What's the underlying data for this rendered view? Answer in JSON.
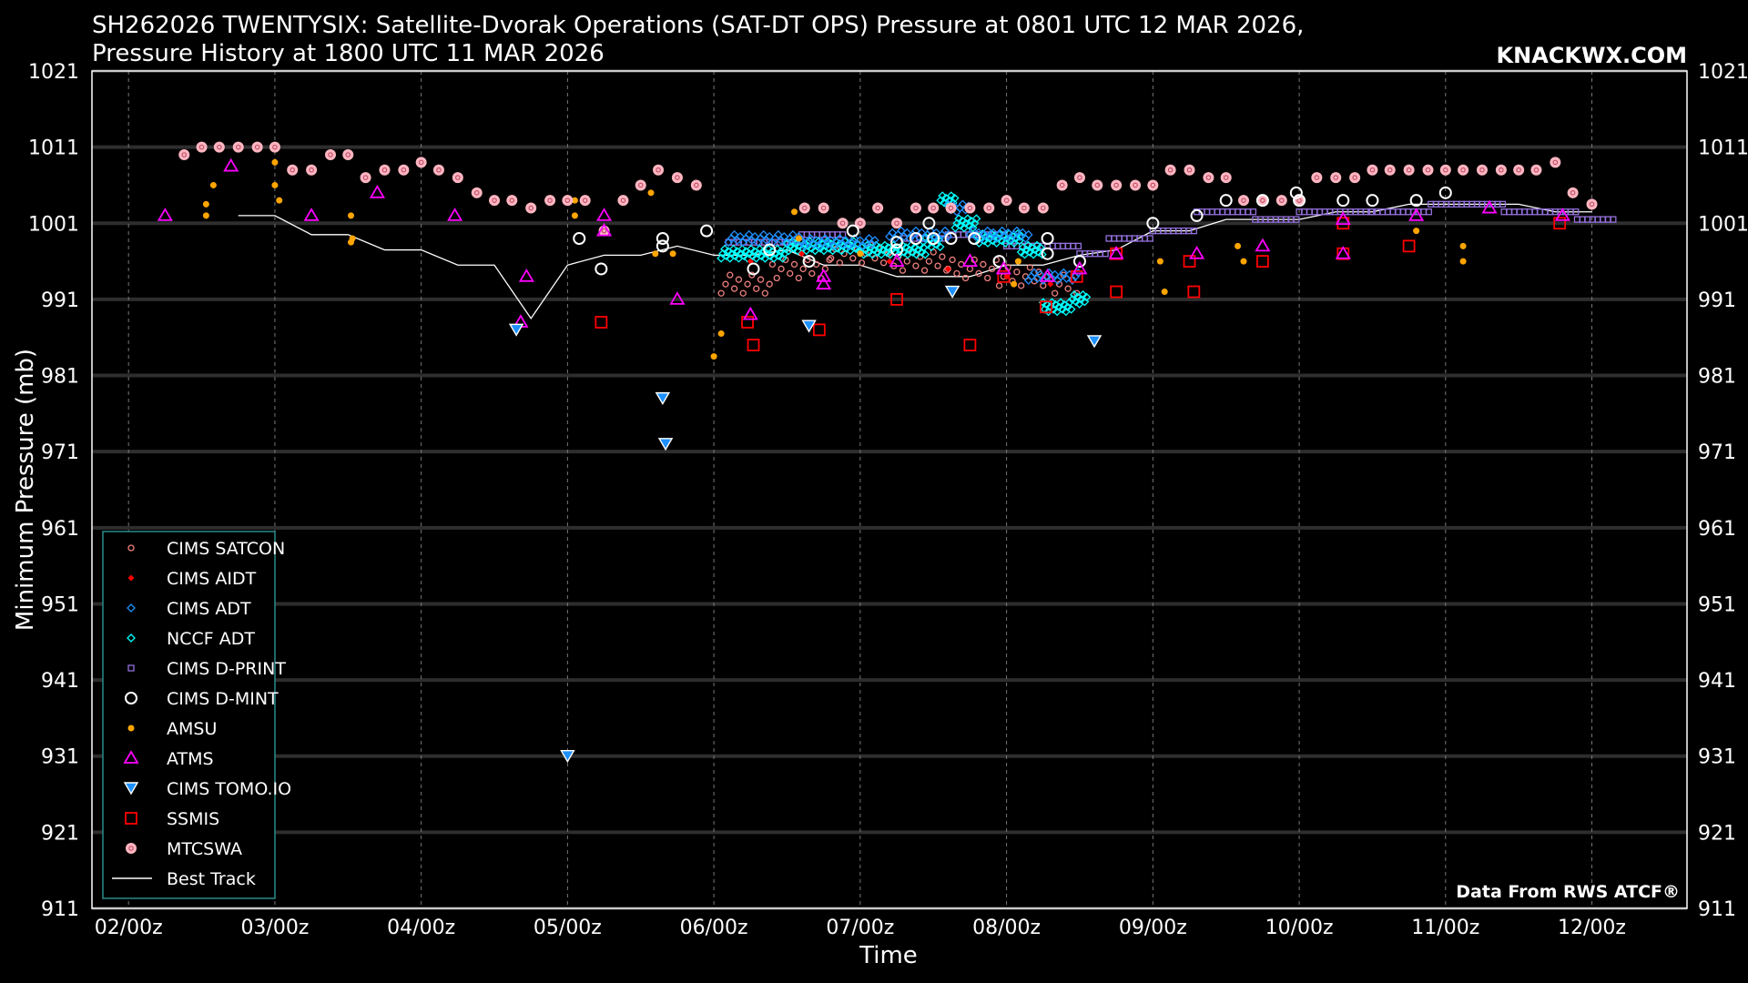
{
  "chart_data": {
    "type": "scatter",
    "title_line1": "SH262026 TWENTYSIX: Satellite-Dvorak Operations (SAT-DT OPS) Pressure at 0801 UTC 12 MAR 2026,",
    "title_line2": "Pressure History at 1800 UTC 11 MAR 2026",
    "brand": "KNACKWX.COM",
    "credit": "Data From RWS ATCF®",
    "xlabel": "Time",
    "ylabel": "Minimum Pressure (mb)",
    "xlim": [
      1.75,
      12.65
    ],
    "ylim": [
      911,
      1021
    ],
    "xticks": [
      2,
      3,
      4,
      5,
      6,
      7,
      8,
      9,
      10,
      11,
      12
    ],
    "xtick_labels": [
      "02/00z",
      "03/00z",
      "04/00z",
      "05/00z",
      "06/00z",
      "07/00z",
      "08/00z",
      "09/00z",
      "10/00z",
      "11/00z",
      "12/00z"
    ],
    "yticks": [
      911,
      921,
      931,
      941,
      951,
      961,
      971,
      981,
      991,
      1001,
      1011,
      1021
    ],
    "ytick_labels": [
      "911",
      "921",
      "931",
      "941",
      "951",
      "961",
      "971",
      "981",
      "991",
      "1001",
      "1011",
      "1021"
    ],
    "x_units": "days of March 2026 (UTC)",
    "colors": {
      "satcon": "#f08080",
      "aidt": "#ff0000",
      "adt": "#1e90ff",
      "nccf": "#00ffff",
      "dprint": "#9370db",
      "dmint": "#ffffff",
      "amsu": "#ffa500",
      "atms": "#ff00ff",
      "tomoio": "#1e90ff",
      "ssmis": "#ff0000",
      "mtcswa": "#ffb6c1",
      "best": "#ffffff"
    },
    "legend": [
      {
        "key": "satcon",
        "label": "CIMS SATCON"
      },
      {
        "key": "aidt",
        "label": "CIMS AIDT"
      },
      {
        "key": "adt",
        "label": "CIMS ADT"
      },
      {
        "key": "nccf",
        "label": "NCCF ADT"
      },
      {
        "key": "dprint",
        "label": "CIMS D-PRINT"
      },
      {
        "key": "dmint",
        "label": "CIMS D-MINT"
      },
      {
        "key": "amsu",
        "label": "AMSU"
      },
      {
        "key": "atms",
        "label": "ATMS"
      },
      {
        "key": "tomoio",
        "label": "CIMS TOMO.IO"
      },
      {
        "key": "ssmis",
        "label": "SSMIS"
      },
      {
        "key": "mtcswa",
        "label": "MTCSWA"
      },
      {
        "key": "best",
        "label": "Best Track"
      }
    ],
    "series": {
      "best": [
        [
          2.75,
          1002
        ],
        [
          3.0,
          1002
        ],
        [
          3.25,
          999.5
        ],
        [
          3.5,
          999.5
        ],
        [
          3.75,
          997.5
        ],
        [
          4.0,
          997.5
        ],
        [
          4.25,
          995.5
        ],
        [
          4.5,
          995.5
        ],
        [
          4.75,
          988.5
        ],
        [
          5.0,
          995.5
        ],
        [
          5.25,
          996.8
        ],
        [
          5.5,
          996.8
        ],
        [
          5.75,
          998
        ],
        [
          6.0,
          996.8
        ],
        [
          6.25,
          996.8
        ],
        [
          6.5,
          997.5
        ],
        [
          6.75,
          995.5
        ],
        [
          7.0,
          995.5
        ],
        [
          7.25,
          994
        ],
        [
          7.5,
          994
        ],
        [
          7.75,
          994
        ],
        [
          8.0,
          995.5
        ],
        [
          8.25,
          995.5
        ],
        [
          8.5,
          996.8
        ],
        [
          8.75,
          997.5
        ],
        [
          9.0,
          1000
        ],
        [
          9.25,
          1000
        ],
        [
          9.5,
          1001.5
        ],
        [
          9.75,
          1001.5
        ],
        [
          10.0,
          1001.5
        ],
        [
          10.25,
          1002.5
        ],
        [
          10.5,
          1002.5
        ],
        [
          10.75,
          1003.5
        ],
        [
          11.0,
          1003.5
        ],
        [
          11.25,
          1003.5
        ],
        [
          11.5,
          1003.5
        ],
        [
          11.75,
          1002.5
        ],
        [
          12.0,
          1002.5
        ]
      ],
      "mtcswa": [
        [
          2.38,
          1010
        ],
        [
          2.5,
          1011
        ],
        [
          2.62,
          1011
        ],
        [
          2.75,
          1011
        ],
        [
          2.88,
          1011
        ],
        [
          3.0,
          1011
        ],
        [
          3.12,
          1008
        ],
        [
          3.25,
          1008
        ],
        [
          3.38,
          1010
        ],
        [
          3.5,
          1010
        ],
        [
          3.62,
          1007
        ],
        [
          3.75,
          1008
        ],
        [
          3.88,
          1008
        ],
        [
          4.0,
          1009
        ],
        [
          4.12,
          1008
        ],
        [
          4.25,
          1007
        ],
        [
          4.38,
          1005
        ],
        [
          4.5,
          1004
        ],
        [
          4.62,
          1004
        ],
        [
          4.75,
          1003
        ],
        [
          4.88,
          1004
        ],
        [
          5.0,
          1004
        ],
        [
          5.12,
          1004
        ],
        [
          5.25,
          1000
        ],
        [
          5.38,
          1004
        ],
        [
          5.5,
          1006
        ],
        [
          5.62,
          1008
        ],
        [
          5.75,
          1007
        ],
        [
          5.88,
          1006
        ],
        [
          6.62,
          1003
        ],
        [
          6.75,
          1003
        ],
        [
          6.88,
          1001
        ],
        [
          7.0,
          1001
        ],
        [
          7.12,
          1003
        ],
        [
          7.25,
          1001
        ],
        [
          7.38,
          1003
        ],
        [
          7.5,
          1003
        ],
        [
          7.62,
          1003
        ],
        [
          7.75,
          1003
        ],
        [
          7.88,
          1003
        ],
        [
          8.0,
          1004
        ],
        [
          8.12,
          1003
        ],
        [
          8.25,
          1003
        ],
        [
          8.38,
          1006
        ],
        [
          8.5,
          1007
        ],
        [
          8.62,
          1006
        ],
        [
          8.75,
          1006
        ],
        [
          8.88,
          1006
        ],
        [
          9.0,
          1006
        ],
        [
          9.12,
          1008
        ],
        [
          9.25,
          1008
        ],
        [
          9.38,
          1007
        ],
        [
          9.5,
          1007
        ],
        [
          9.62,
          1004
        ],
        [
          9.75,
          1004
        ],
        [
          9.88,
          1004
        ],
        [
          10.0,
          1004
        ],
        [
          10.12,
          1007
        ],
        [
          10.25,
          1007
        ],
        [
          10.38,
          1007
        ],
        [
          10.5,
          1008
        ],
        [
          10.62,
          1008
        ],
        [
          10.75,
          1008
        ],
        [
          10.88,
          1008
        ],
        [
          11.0,
          1008
        ],
        [
          11.12,
          1008
        ],
        [
          11.25,
          1008
        ],
        [
          11.38,
          1008
        ],
        [
          11.5,
          1008
        ],
        [
          11.62,
          1008
        ],
        [
          11.75,
          1009
        ],
        [
          11.87,
          1005
        ],
        [
          12.0,
          1003.5
        ]
      ],
      "atms": [
        [
          2.25,
          1002
        ],
        [
          2.7,
          1008.5
        ],
        [
          3.25,
          1002
        ],
        [
          3.7,
          1005
        ],
        [
          4.23,
          1002
        ],
        [
          4.72,
          994
        ],
        [
          4.68,
          988
        ],
        [
          5.25,
          1000
        ],
        [
          5.25,
          1002
        ],
        [
          5.75,
          991
        ],
        [
          6.25,
          989
        ],
        [
          6.75,
          994
        ],
        [
          6.75,
          993
        ],
        [
          7.25,
          996
        ],
        [
          7.75,
          996
        ],
        [
          7.98,
          995
        ],
        [
          8.28,
          994
        ],
        [
          8.5,
          995
        ],
        [
          8.75,
          997
        ],
        [
          9.3,
          997
        ],
        [
          9.75,
          998
        ],
        [
          10.3,
          1001.5
        ],
        [
          10.3,
          997
        ],
        [
          10.8,
          1002
        ],
        [
          11.3,
          1003
        ],
        [
          11.8,
          1002
        ]
      ],
      "ssmis": [
        [
          5.23,
          988
        ],
        [
          6.23,
          988
        ],
        [
          6.27,
          985
        ],
        [
          6.72,
          987
        ],
        [
          7.25,
          991
        ],
        [
          7.75,
          985
        ],
        [
          7.98,
          994
        ],
        [
          8.27,
          990
        ],
        [
          8.48,
          994
        ],
        [
          8.75,
          992
        ],
        [
          8.75,
          997
        ],
        [
          9.28,
          992
        ],
        [
          9.25,
          996
        ],
        [
          9.75,
          996
        ],
        [
          10.3,
          1001
        ],
        [
          10.3,
          997
        ],
        [
          10.75,
          998
        ],
        [
          11.78,
          1001
        ]
      ],
      "tomoio": [
        [
          4.65,
          987
        ],
        [
          5.0,
          931
        ],
        [
          5.65,
          978
        ],
        [
          5.67,
          972
        ],
        [
          6.65,
          987.5
        ],
        [
          7.63,
          992
        ],
        [
          8.6,
          985.5
        ]
      ],
      "amsu": [
        [
          2.53,
          1002
        ],
        [
          2.53,
          1003.5
        ],
        [
          2.58,
          1006
        ],
        [
          3.0,
          1006
        ],
        [
          3.0,
          1009
        ],
        [
          3.03,
          1004
        ],
        [
          3.52,
          1002
        ],
        [
          3.53,
          999
        ],
        [
          3.52,
          998.5
        ],
        [
          5.05,
          1002
        ],
        [
          5.05,
          1004
        ],
        [
          5.6,
          997
        ],
        [
          5.57,
          1005
        ],
        [
          5.72,
          997
        ],
        [
          6.0,
          983.5
        ],
        [
          6.05,
          986.5
        ],
        [
          6.55,
          1002.5
        ],
        [
          6.58,
          999
        ],
        [
          7.0,
          997
        ],
        [
          8.05,
          993
        ],
        [
          8.08,
          996
        ],
        [
          9.05,
          996
        ],
        [
          9.08,
          992
        ],
        [
          9.58,
          998
        ],
        [
          9.62,
          996
        ],
        [
          10.8,
          1000
        ],
        [
          11.12,
          996
        ],
        [
          11.12,
          998
        ]
      ],
      "dmint": [
        [
          5.08,
          999
        ],
        [
          5.23,
          995
        ],
        [
          5.65,
          999
        ],
        [
          5.65,
          998
        ],
        [
          5.95,
          1000
        ],
        [
          6.27,
          995
        ],
        [
          6.38,
          997.5
        ],
        [
          6.65,
          996
        ],
        [
          6.95,
          1000
        ],
        [
          7.25,
          998.5
        ],
        [
          7.25,
          997.5
        ],
        [
          7.38,
          999
        ],
        [
          7.47,
          1001
        ],
        [
          7.5,
          999
        ],
        [
          7.62,
          999
        ],
        [
          7.78,
          999
        ],
        [
          7.95,
          996
        ],
        [
          8.28,
          999
        ],
        [
          8.28,
          997
        ],
        [
          8.5,
          996
        ],
        [
          9.0,
          1001
        ],
        [
          9.3,
          1002
        ],
        [
          9.5,
          1004
        ],
        [
          9.75,
          1004
        ],
        [
          9.98,
          1005
        ],
        [
          10.0,
          1004
        ],
        [
          10.3,
          1004
        ],
        [
          10.5,
          1004
        ],
        [
          10.8,
          1004
        ],
        [
          11.0,
          1005
        ]
      ],
      "dprint_segments": [
        [
          6.1,
          6.6,
          998.5
        ],
        [
          6.6,
          6.9,
          999.5
        ],
        [
          7.3,
          7.6,
          999
        ],
        [
          7.6,
          8.0,
          999.5
        ],
        [
          8.0,
          8.5,
          998
        ],
        [
          8.5,
          8.7,
          997
        ],
        [
          8.7,
          9.0,
          999
        ],
        [
          9.0,
          9.3,
          1000
        ],
        [
          9.3,
          9.7,
          1002.5
        ],
        [
          9.7,
          10.0,
          1001.5
        ],
        [
          10.0,
          10.5,
          1002.5
        ],
        [
          10.5,
          10.9,
          1002.5
        ],
        [
          10.9,
          11.4,
          1003.5
        ],
        [
          11.4,
          11.9,
          1002.5
        ],
        [
          11.9,
          12.15,
          1001.5
        ]
      ],
      "nccf_segments": [
        [
          6.05,
          6.5,
          997
        ],
        [
          6.5,
          7.0,
          998
        ],
        [
          7.0,
          7.45,
          997.5
        ],
        [
          7.45,
          7.55,
          998.5
        ],
        [
          7.55,
          7.65,
          1004
        ],
        [
          7.65,
          7.8,
          1001
        ],
        [
          7.8,
          8.1,
          999
        ],
        [
          8.1,
          8.25,
          997.5
        ],
        [
          8.25,
          8.45,
          990
        ],
        [
          8.45,
          8.55,
          991
        ]
      ],
      "adt_segments": [
        [
          6.1,
          6.6,
          999
        ],
        [
          6.6,
          7.1,
          998.5
        ],
        [
          7.2,
          7.6,
          999.5
        ],
        [
          7.6,
          7.75,
          1003
        ],
        [
          7.75,
          8.15,
          999.5
        ],
        [
          8.15,
          8.5,
          994
        ]
      ],
      "satcon_segments": [
        [
          6.05,
          6.4,
          993
        ],
        [
          6.4,
          6.8,
          995
        ],
        [
          6.8,
          7.2,
          997
        ],
        [
          7.2,
          7.6,
          996
        ],
        [
          7.6,
          7.95,
          995
        ],
        [
          7.95,
          8.3,
          994
        ],
        [
          8.3,
          8.5,
          993
        ]
      ],
      "aidt_points": [
        [
          6.25,
          996
        ],
        [
          6.6,
          997
        ],
        [
          7.2,
          996
        ],
        [
          7.6,
          995
        ],
        [
          8.0,
          994
        ],
        [
          8.3,
          993
        ]
      ]
    }
  }
}
